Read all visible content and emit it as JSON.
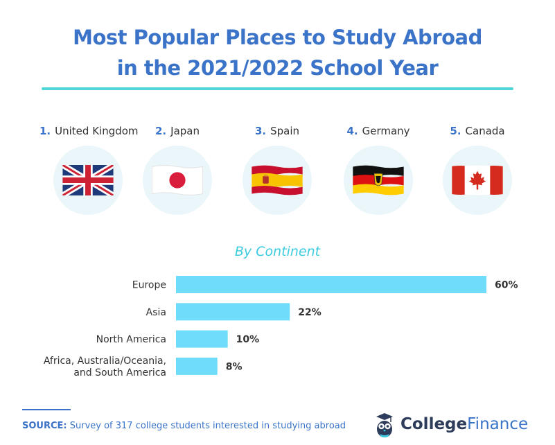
{
  "title": {
    "line1": "Most Popular Places to Study Abroad",
    "line2": "in the 2021/2022 School Year"
  },
  "top_countries": [
    {
      "rank": "1.",
      "name": "United Kingdom",
      "icon": "uk-flag-icon"
    },
    {
      "rank": "2.",
      "name": "Japan",
      "icon": "japan-flag-icon"
    },
    {
      "rank": "3.",
      "name": "Spain",
      "icon": "spain-flag-icon"
    },
    {
      "rank": "4.",
      "name": "Germany",
      "icon": "germany-flag-icon"
    },
    {
      "rank": "5.",
      "name": "Canada",
      "icon": "canada-flag-icon"
    }
  ],
  "chart_data": {
    "type": "bar",
    "orientation": "horizontal",
    "title": "By Continent",
    "categories": [
      [
        "Europe"
      ],
      [
        "Asia"
      ],
      [
        "North America"
      ],
      [
        "Africa, Australia/Oceania,",
        "and South America"
      ]
    ],
    "values": [
      60,
      22,
      10,
      8
    ],
    "value_labels": [
      "60%",
      "22%",
      "10%",
      "8%"
    ],
    "xlim": [
      0,
      60
    ],
    "grid": false,
    "bar_color": "#6fdcfb"
  },
  "source": {
    "key": "SOURCE:",
    "text": "Survey of 317 college students interested in studying abroad"
  },
  "logo": {
    "part1": "College",
    "part2": "Finance",
    "icon": "owl-graduation-icon"
  },
  "colors": {
    "title": "#3a73c8",
    "accent": "#4fd6d8",
    "bar": "#6fdcfb",
    "flag_bg": "#eaf6fa"
  }
}
